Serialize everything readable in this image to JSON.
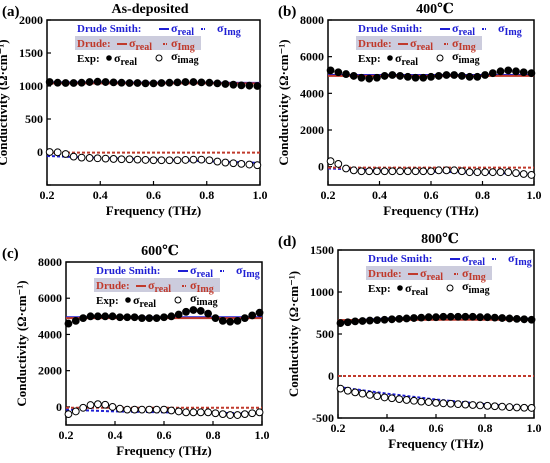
{
  "figure": {
    "y_label": "Conductivity (Ω·cm⁻¹)",
    "x_label": "Frequency (THz)"
  },
  "legend_text": {
    "drude_smith": "Drude Smith:",
    "drude": "Drude:",
    "exp": "Exp:",
    "sigma": "σ",
    "real": "real",
    "img": "Img",
    "imag": "imag"
  },
  "colors": {
    "drude_smith": "#1f1fd4",
    "drude": "#c0392b",
    "exp_real": "#000000",
    "exp_imag": "#000000",
    "legend_box": "#ccccdd"
  },
  "chart_data": [
    {
      "type": "line",
      "panel_label": "(a)",
      "title": "As-deposited",
      "xlabel": "Frequency (THz)",
      "ylabel": "Conductivity (Ω·cm⁻¹)",
      "xlim": [
        0.2,
        1.0
      ],
      "ylim": [
        -500,
        2000
      ],
      "x_ticks": [
        0.2,
        0.4,
        0.6,
        0.8,
        1.0
      ],
      "y_ticks": [
        -500,
        0,
        500,
        1000,
        1500,
        2000
      ],
      "x_tick_labels": [
        "0.2",
        "0.4",
        "0.6",
        "0.8",
        "1.0"
      ],
      "y_tick_labels": [
        "",
        "0",
        "500",
        "1000",
        "1500",
        "2000"
      ],
      "legend_position": "top",
      "series": [
        {
          "name": "Drude Smith σreal",
          "style": "solid",
          "color_key": "drude_smith",
          "x": [
            0.2,
            0.4,
            0.6,
            0.8,
            1.0
          ],
          "y": [
            1055,
            1055,
            1052,
            1050,
            1048
          ]
        },
        {
          "name": "Drude Smith σImg",
          "style": "dashed",
          "color_key": "drude_smith",
          "x": [
            0.2,
            0.4,
            0.6,
            0.8,
            1.0
          ],
          "y": [
            -60,
            -90,
            -115,
            -140,
            -165
          ]
        },
        {
          "name": "Drude σreal",
          "style": "solid",
          "color_key": "drude",
          "x": [
            0.2,
            0.4,
            0.6,
            0.8,
            1.0
          ],
          "y": [
            1040,
            1040,
            1040,
            1040,
            1040
          ]
        },
        {
          "name": "Drude σImg",
          "style": "dashed",
          "color_key": "drude",
          "x": [
            0.2,
            0.4,
            0.6,
            0.8,
            1.0
          ],
          "y": [
            -10,
            -10,
            -10,
            -10,
            -10
          ]
        },
        {
          "name": "Exp σreal",
          "style": "filled-circle",
          "color_key": "exp_real",
          "x": [
            0.21,
            0.24,
            0.27,
            0.3,
            0.33,
            0.36,
            0.39,
            0.42,
            0.45,
            0.48,
            0.51,
            0.54,
            0.57,
            0.6,
            0.63,
            0.66,
            0.69,
            0.72,
            0.75,
            0.78,
            0.81,
            0.84,
            0.87,
            0.9,
            0.93,
            0.96,
            0.99
          ],
          "y": [
            1060,
            1050,
            1045,
            1045,
            1050,
            1060,
            1065,
            1060,
            1055,
            1050,
            1045,
            1045,
            1040,
            1040,
            1045,
            1050,
            1055,
            1060,
            1060,
            1055,
            1050,
            1040,
            1030,
            1020,
            1010,
            1005,
            1000
          ]
        },
        {
          "name": "Exp σimag",
          "style": "open-circle",
          "color_key": "exp_imag",
          "x": [
            0.21,
            0.24,
            0.27,
            0.3,
            0.33,
            0.36,
            0.39,
            0.42,
            0.45,
            0.48,
            0.51,
            0.54,
            0.57,
            0.6,
            0.63,
            0.66,
            0.69,
            0.72,
            0.75,
            0.78,
            0.81,
            0.84,
            0.87,
            0.9,
            0.93,
            0.96,
            0.99
          ],
          "y": [
            0,
            -5,
            -30,
            -70,
            -85,
            -90,
            -95,
            -100,
            -105,
            -110,
            -110,
            -115,
            -120,
            -125,
            -125,
            -125,
            -125,
            -120,
            -115,
            -115,
            -125,
            -145,
            -160,
            -170,
            -180,
            -190,
            -200
          ]
        }
      ]
    },
    {
      "type": "line",
      "panel_label": "(b)",
      "title": "400℃",
      "xlabel": "Frequency (THz)",
      "ylabel": "Conductivity (Ω·cm⁻¹)",
      "xlim": [
        0.2,
        1.0
      ],
      "ylim": [
        -1000,
        8000
      ],
      "x_ticks": [
        0.2,
        0.4,
        0.6,
        0.8,
        1.0
      ],
      "y_ticks": [
        0,
        2000,
        4000,
        6000,
        8000
      ],
      "x_tick_labels": [
        "0.2",
        "0.4",
        "0.6",
        "0.8",
        "1.0"
      ],
      "y_tick_labels": [
        "0",
        "2000",
        "4000",
        "6000",
        "8000"
      ],
      "legend_position": "top",
      "series": [
        {
          "name": "Drude Smith σreal",
          "style": "solid",
          "color_key": "drude_smith",
          "x": [
            0.2,
            0.4,
            0.6,
            0.8,
            1.0
          ],
          "y": [
            5000,
            5000,
            5000,
            5000,
            5000
          ]
        },
        {
          "name": "Drude Smith σImg",
          "style": "dashed",
          "color_key": "drude_smith",
          "x": [
            0.2,
            0.4,
            0.6,
            0.8,
            1.0
          ],
          "y": [
            -100,
            -200,
            -270,
            -330,
            -400
          ]
        },
        {
          "name": "Drude σreal",
          "style": "solid",
          "color_key": "drude",
          "x": [
            0.2,
            0.4,
            0.6,
            0.8,
            1.0
          ],
          "y": [
            4950,
            4950,
            4950,
            4950,
            4950
          ]
        },
        {
          "name": "Drude σImg",
          "style": "dashed",
          "color_key": "drude",
          "x": [
            0.2,
            0.4,
            0.6,
            0.8,
            1.0
          ],
          "y": [
            -50,
            -50,
            -50,
            -50,
            -50
          ]
        },
        {
          "name": "Exp σreal",
          "style": "filled-circle",
          "color_key": "exp_real",
          "x": [
            0.21,
            0.24,
            0.27,
            0.3,
            0.33,
            0.36,
            0.39,
            0.42,
            0.45,
            0.48,
            0.51,
            0.54,
            0.57,
            0.6,
            0.63,
            0.66,
            0.69,
            0.72,
            0.75,
            0.78,
            0.81,
            0.84,
            0.87,
            0.9,
            0.93,
            0.96,
            0.99
          ],
          "y": [
            5250,
            5150,
            5050,
            4950,
            4850,
            4800,
            4850,
            4950,
            5000,
            4950,
            4900,
            4850,
            4850,
            4900,
            4950,
            5000,
            5000,
            4950,
            4900,
            4900,
            5000,
            5100,
            5200,
            5250,
            5200,
            5150,
            5100
          ]
        },
        {
          "name": "Exp σimag",
          "style": "open-circle",
          "color_key": "exp_imag",
          "x": [
            0.21,
            0.24,
            0.27,
            0.3,
            0.33,
            0.36,
            0.39,
            0.42,
            0.45,
            0.48,
            0.51,
            0.54,
            0.57,
            0.6,
            0.63,
            0.66,
            0.69,
            0.72,
            0.75,
            0.78,
            0.81,
            0.84,
            0.87,
            0.9,
            0.93,
            0.96,
            0.99
          ],
          "y": [
            300,
            150,
            -100,
            -200,
            -250,
            -250,
            -250,
            -250,
            -250,
            -250,
            -250,
            -250,
            -250,
            -250,
            -200,
            -200,
            -200,
            -250,
            -300,
            -300,
            -300,
            -300,
            -300,
            -300,
            -350,
            -400,
            -450
          ]
        }
      ]
    },
    {
      "type": "line",
      "panel_label": "(c)",
      "title": "600℃",
      "xlabel": "Frequency (THz)",
      "ylabel": "Conductivity (Ω·cm⁻¹)",
      "xlim": [
        0.2,
        1.0
      ],
      "ylim": [
        -1000,
        8000
      ],
      "x_ticks": [
        0.2,
        0.4,
        0.6,
        0.8,
        1.0
      ],
      "y_ticks": [
        0,
        2000,
        4000,
        6000,
        8000
      ],
      "x_tick_labels": [
        "0.2",
        "0.4",
        "0.6",
        "0.8",
        "1.0"
      ],
      "y_tick_labels": [
        "0",
        "2000",
        "4000",
        "6000",
        "8000"
      ],
      "legend_position": "top",
      "series": [
        {
          "name": "Drude Smith σreal",
          "style": "solid",
          "color_key": "drude_smith",
          "x": [
            0.2,
            0.4,
            0.6,
            0.8,
            1.0
          ],
          "y": [
            4950,
            4950,
            4950,
            4950,
            4950
          ]
        },
        {
          "name": "Drude Smith σImg",
          "style": "dashed",
          "color_key": "drude_smith",
          "x": [
            0.2,
            0.4,
            0.6,
            0.8,
            1.0
          ],
          "y": [
            -150,
            -250,
            -300,
            -330,
            -350
          ]
        },
        {
          "name": "Drude σreal",
          "style": "solid",
          "color_key": "drude",
          "x": [
            0.2,
            0.4,
            0.6,
            0.8,
            1.0
          ],
          "y": [
            4900,
            4900,
            4900,
            4900,
            4900
          ]
        },
        {
          "name": "Drude σImg",
          "style": "dashed",
          "color_key": "drude",
          "x": [
            0.2,
            0.4,
            0.6,
            0.8,
            1.0
          ],
          "y": [
            -50,
            -50,
            -50,
            -50,
            -50
          ]
        },
        {
          "name": "Exp σreal",
          "style": "filled-circle",
          "color_key": "exp_real",
          "x": [
            0.21,
            0.24,
            0.27,
            0.3,
            0.33,
            0.36,
            0.39,
            0.42,
            0.45,
            0.48,
            0.51,
            0.54,
            0.57,
            0.6,
            0.63,
            0.66,
            0.69,
            0.72,
            0.75,
            0.78,
            0.81,
            0.84,
            0.87,
            0.9,
            0.93,
            0.96,
            0.99
          ],
          "y": [
            4600,
            4750,
            4900,
            5000,
            5000,
            5000,
            5000,
            4950,
            4950,
            4950,
            4900,
            4900,
            4900,
            4950,
            5000,
            5100,
            5250,
            5350,
            5300,
            5150,
            4900,
            4750,
            4700,
            4750,
            4900,
            5050,
            5200
          ]
        },
        {
          "name": "Exp σimag",
          "style": "open-circle",
          "color_key": "exp_imag",
          "x": [
            0.21,
            0.24,
            0.27,
            0.3,
            0.33,
            0.36,
            0.39,
            0.42,
            0.45,
            0.48,
            0.51,
            0.54,
            0.57,
            0.6,
            0.63,
            0.66,
            0.69,
            0.72,
            0.75,
            0.78,
            0.81,
            0.84,
            0.87,
            0.9,
            0.93,
            0.96,
            0.99
          ],
          "y": [
            -400,
            -250,
            -50,
            100,
            150,
            120,
            0,
            -100,
            -150,
            -150,
            -150,
            -150,
            -150,
            -150,
            -200,
            -250,
            -300,
            -300,
            -300,
            -300,
            -350,
            -400,
            -450,
            -450,
            -400,
            -350,
            -300
          ]
        }
      ]
    },
    {
      "type": "line",
      "panel_label": "(d)",
      "title": "800℃",
      "xlabel": "Frequency (THz)",
      "ylabel": "Conductivity (Ω·cm⁻¹)",
      "xlim": [
        0.2,
        1.0
      ],
      "ylim": [
        -500,
        1500
      ],
      "x_ticks": [
        0.2,
        0.4,
        0.6,
        0.8,
        1.0
      ],
      "y_ticks": [
        -500,
        0,
        500,
        1000,
        1500
      ],
      "x_tick_labels": [
        "0.2",
        "0.4",
        "0.6",
        "0.8",
        "1.0"
      ],
      "y_tick_labels": [
        "-500",
        "0",
        "500",
        "1000",
        "1500"
      ],
      "legend_position": "top",
      "series": [
        {
          "name": "Drude Smith σreal",
          "style": "solid",
          "color_key": "drude_smith",
          "x": [
            0.2,
            0.4,
            0.6,
            0.8,
            1.0
          ],
          "y": [
            650,
            685,
            700,
            695,
            680
          ]
        },
        {
          "name": "Drude Smith σImg",
          "style": "dashed",
          "color_key": "drude_smith",
          "x": [
            0.2,
            0.4,
            0.6,
            0.8,
            1.0
          ],
          "y": [
            -130,
            -210,
            -280,
            -335,
            -380
          ]
        },
        {
          "name": "Drude σreal",
          "style": "solid",
          "color_key": "drude",
          "x": [
            0.2,
            0.4,
            0.6,
            0.8,
            1.0
          ],
          "y": [
            665,
            668,
            670,
            670,
            668
          ]
        },
        {
          "name": "Drude σImg",
          "style": "dashed",
          "color_key": "drude",
          "x": [
            0.2,
            0.4,
            0.6,
            0.8,
            1.0
          ],
          "y": [
            0,
            0,
            0,
            0,
            0
          ]
        },
        {
          "name": "Exp σreal",
          "style": "filled-circle",
          "color_key": "exp_real",
          "x": [
            0.21,
            0.24,
            0.27,
            0.3,
            0.33,
            0.36,
            0.39,
            0.42,
            0.45,
            0.48,
            0.51,
            0.54,
            0.57,
            0.6,
            0.63,
            0.66,
            0.69,
            0.72,
            0.75,
            0.78,
            0.81,
            0.84,
            0.87,
            0.9,
            0.93,
            0.96,
            0.99
          ],
          "y": [
            630,
            640,
            650,
            655,
            660,
            665,
            670,
            675,
            680,
            685,
            690,
            695,
            700,
            700,
            705,
            705,
            705,
            705,
            705,
            700,
            700,
            695,
            690,
            685,
            680,
            675,
            670
          ]
        },
        {
          "name": "Exp σimag",
          "style": "open-circle",
          "color_key": "exp_imag",
          "x": [
            0.21,
            0.24,
            0.27,
            0.3,
            0.33,
            0.36,
            0.39,
            0.42,
            0.45,
            0.48,
            0.51,
            0.54,
            0.57,
            0.6,
            0.63,
            0.66,
            0.69,
            0.72,
            0.75,
            0.78,
            0.81,
            0.84,
            0.87,
            0.9,
            0.93,
            0.96,
            0.99
          ],
          "y": [
            -150,
            -175,
            -195,
            -210,
            -225,
            -240,
            -255,
            -265,
            -275,
            -285,
            -295,
            -305,
            -310,
            -320,
            -325,
            -330,
            -335,
            -340,
            -345,
            -350,
            -355,
            -360,
            -365,
            -370,
            -375,
            -378,
            -380
          ]
        }
      ]
    }
  ]
}
